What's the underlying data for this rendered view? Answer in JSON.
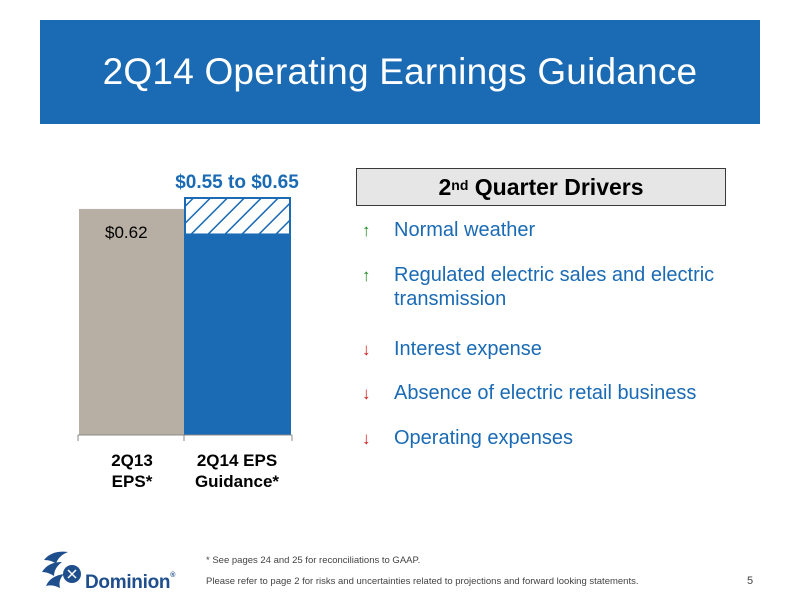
{
  "page": {
    "title": "2Q14 Operating Earnings Guidance",
    "number": "5"
  },
  "chart_data": {
    "type": "bar",
    "categories": [
      "2Q13 EPS*",
      "2Q14 EPS Guidance*"
    ],
    "category_lines": [
      [
        "2Q13",
        "EPS*"
      ],
      [
        "2Q14 EPS",
        "Guidance*"
      ]
    ],
    "values": [
      0.62,
      0.55
    ],
    "range_high": 0.65,
    "data_labels": [
      "$0.62",
      "$0.55 to $0.65"
    ],
    "ylim": [
      0,
      0.65
    ],
    "colors": {
      "bar1": "#b7afa3",
      "bar2": "#1a6ab4",
      "label_range": "#1a6ab4"
    }
  },
  "drivers": {
    "heading_main": "2",
    "heading_sup": "nd",
    "heading_rest": " Quarter Drivers",
    "items": [
      {
        "icon": "arrow-up",
        "text": "Normal weather"
      },
      {
        "icon": "arrow-up",
        "text": "Regulated electric sales and electric transmission"
      },
      {
        "icon": "arrow-down",
        "text": "Interest expense"
      },
      {
        "icon": "arrow-down",
        "text": "Absence of electric retail business"
      },
      {
        "icon": "arrow-down",
        "text": "Operating expenses"
      }
    ]
  },
  "footnotes": {
    "reconciliation": "* See pages 24 and 25 for reconciliations to GAAP.",
    "risks": "Please refer to page 2 for risks and uncertainties related to projections and forward looking statements."
  },
  "logo": {
    "text": "Dominion",
    "mark": "®"
  }
}
